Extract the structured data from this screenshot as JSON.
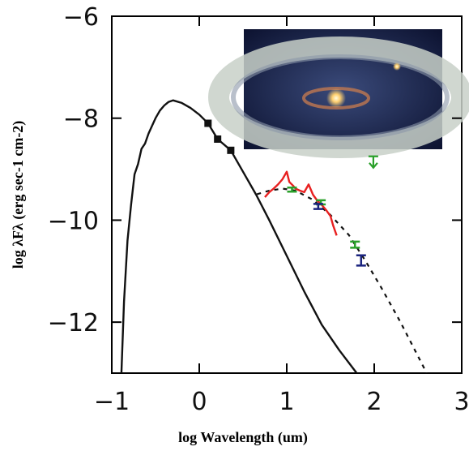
{
  "chart_data": {
    "type": "line",
    "x_label": "log Wavelength (um)",
    "y_label": "log λFλ (erg sec-1 cm-2)",
    "xlim": [
      -1,
      3
    ],
    "ylim": [
      -13,
      -6
    ],
    "xticks": [
      {
        "value": -1,
        "label": "−1"
      },
      0,
      1,
      2,
      3
    ],
    "yticks": [
      {
        "value": -6,
        "label": "−6"
      },
      {
        "value": -8,
        "label": "−8"
      },
      {
        "value": -10,
        "label": "−10"
      },
      {
        "value": -12,
        "label": "−12"
      }
    ],
    "series": [
      {
        "color": "#111111",
        "style": "solid",
        "x": [
          -0.89,
          -0.86,
          -0.82,
          -0.78,
          -0.74,
          -0.7,
          -0.66,
          -0.62,
          -0.58,
          -0.54,
          -0.5,
          -0.45,
          -0.4,
          -0.35,
          -0.3,
          -0.2,
          -0.1,
          0.0,
          0.1,
          0.21,
          0.36,
          0.5,
          0.65,
          0.8,
          1.0,
          1.2,
          1.4,
          1.6,
          1.8
        ],
        "values": [
          -13.0,
          -11.6,
          -10.4,
          -9.7,
          -9.1,
          -8.9,
          -8.6,
          -8.5,
          -8.3,
          -8.15,
          -8.0,
          -7.85,
          -7.75,
          -7.68,
          -7.65,
          -7.7,
          -7.8,
          -7.93,
          -8.1,
          -8.41,
          -8.63,
          -9.05,
          -9.5,
          -10.0,
          -10.7,
          -11.4,
          -12.05,
          -12.55,
          -13.0
        ]
      },
      {
        "color": "#111111",
        "style": "dotted",
        "x": [
          0.66,
          0.8,
          0.95,
          1.1,
          1.3,
          1.5,
          1.71,
          1.9,
          2.08,
          2.3,
          2.45,
          2.6
        ],
        "values": [
          -9.49,
          -9.42,
          -9.38,
          -9.42,
          -9.6,
          -9.9,
          -10.29,
          -10.8,
          -11.32,
          -12.0,
          -12.5,
          -13.0
        ]
      },
      {
        "color": "#e82020",
        "style": "solid",
        "x": [
          0.75,
          0.8,
          0.85,
          0.9,
          0.95,
          1.0,
          1.03,
          1.07,
          1.1,
          1.15,
          1.2,
          1.25,
          1.3,
          1.35,
          1.4,
          1.45,
          1.5,
          1.53,
          1.57
        ],
        "values": [
          -9.55,
          -9.45,
          -9.38,
          -9.3,
          -9.2,
          -9.05,
          -9.25,
          -9.32,
          -9.38,
          -9.42,
          -9.45,
          -9.3,
          -9.5,
          -9.62,
          -9.7,
          -9.8,
          -9.92,
          -10.1,
          -10.3
        ]
      },
      {
        "color": "#111111",
        "marker": "square",
        "x": [
          0.1,
          0.21,
          0.36
        ],
        "values": [
          -8.1,
          -8.41,
          -8.63
        ]
      },
      {
        "color": "#2aa02a",
        "marker": "errorbar",
        "x": [
          1.06,
          1.39,
          1.78
        ],
        "values": [
          -9.4,
          -9.65,
          -10.48
        ],
        "errors": [
          0.04,
          0.04,
          0.06
        ]
      },
      {
        "color": "#1a237e",
        "marker": "errorbar",
        "x": [
          1.36,
          1.85
        ],
        "values": [
          -9.73,
          -10.79
        ],
        "errors": [
          0.05,
          0.1
        ]
      },
      {
        "color": "#2aa02a",
        "marker": "upper-limit",
        "x": [
          1.99
        ],
        "values": [
          -8.86
        ]
      }
    ]
  }
}
